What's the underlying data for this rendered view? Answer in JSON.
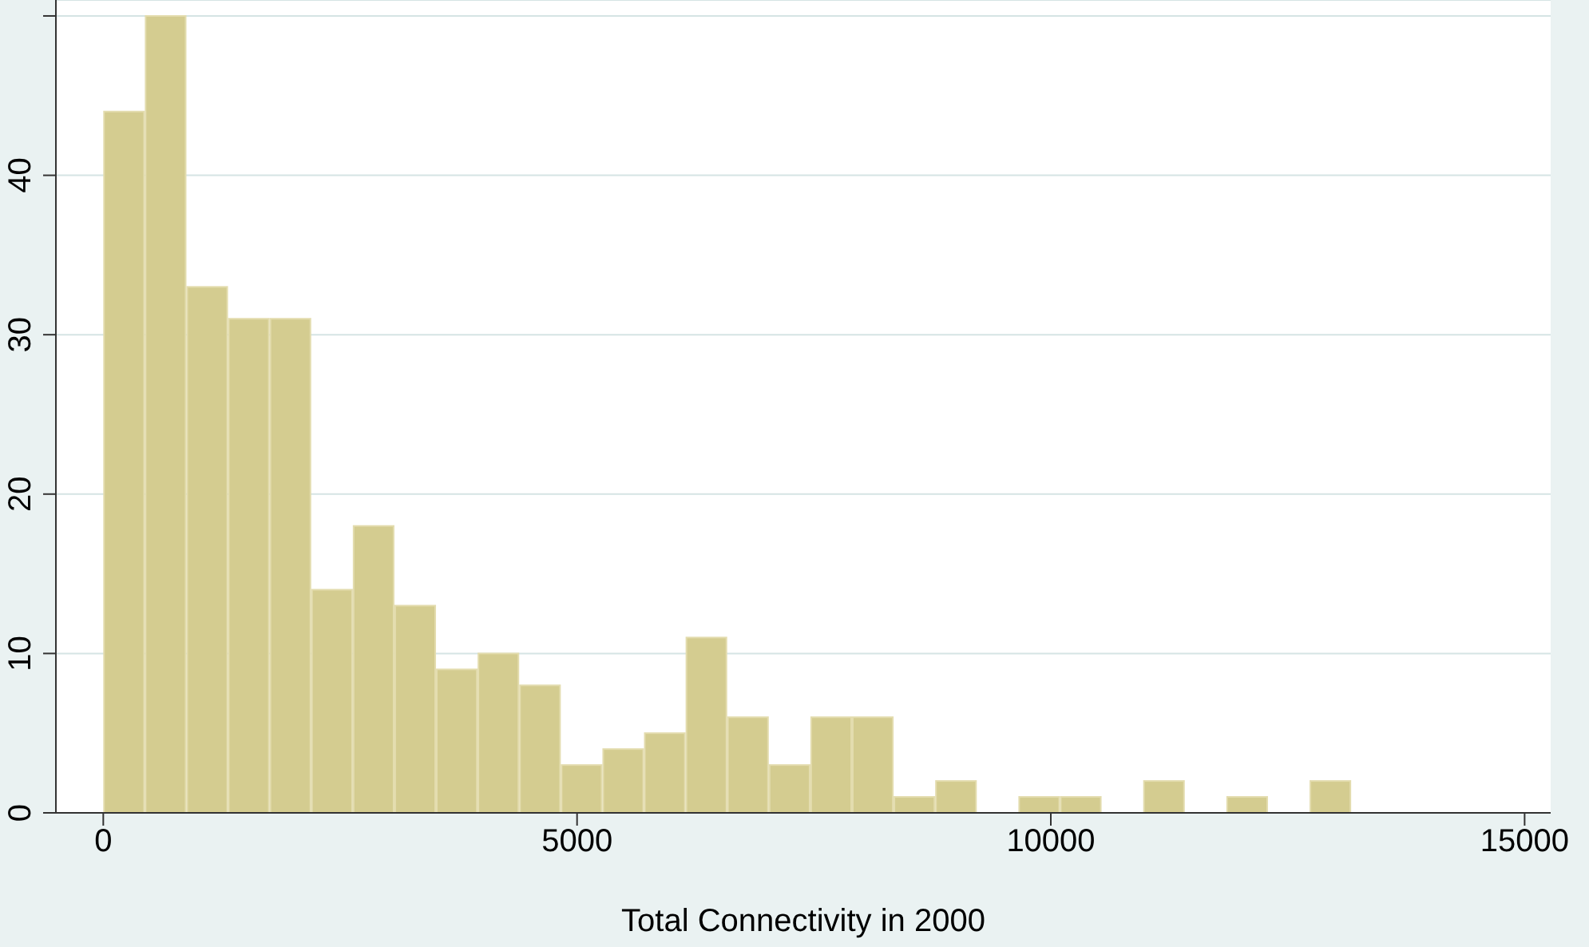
{
  "chart_data": {
    "type": "histogram",
    "xlabel": "Total Connectivity in 2000",
    "bins": [
      0,
      439,
      878,
      1317,
      1756,
      2195,
      2634,
      3073,
      3512,
      3951,
      4390,
      4829,
      5268,
      5707,
      6146,
      6585,
      7024,
      7463,
      7902,
      8341,
      8780,
      9219,
      9658,
      10097,
      10536,
      10975,
      11414,
      11853,
      12292,
      12731,
      13170
    ],
    "values": [
      44,
      50,
      33,
      31,
      31,
      14,
      18,
      13,
      9,
      10,
      8,
      3,
      4,
      5,
      11,
      6,
      3,
      6,
      6,
      1,
      2,
      0,
      1,
      1,
      0,
      2,
      0,
      1,
      0,
      2
    ],
    "color": "#d4cc90",
    "xlim": [
      -500,
      15275
    ],
    "xticks": [
      0,
      5000,
      10000,
      15000
    ],
    "ylim": [
      0,
      51
    ],
    "yticks": [
      0,
      10,
      20,
      30,
      40,
      {
        "value": 50,
        "label": null
      }
    ],
    "grid": "y"
  }
}
